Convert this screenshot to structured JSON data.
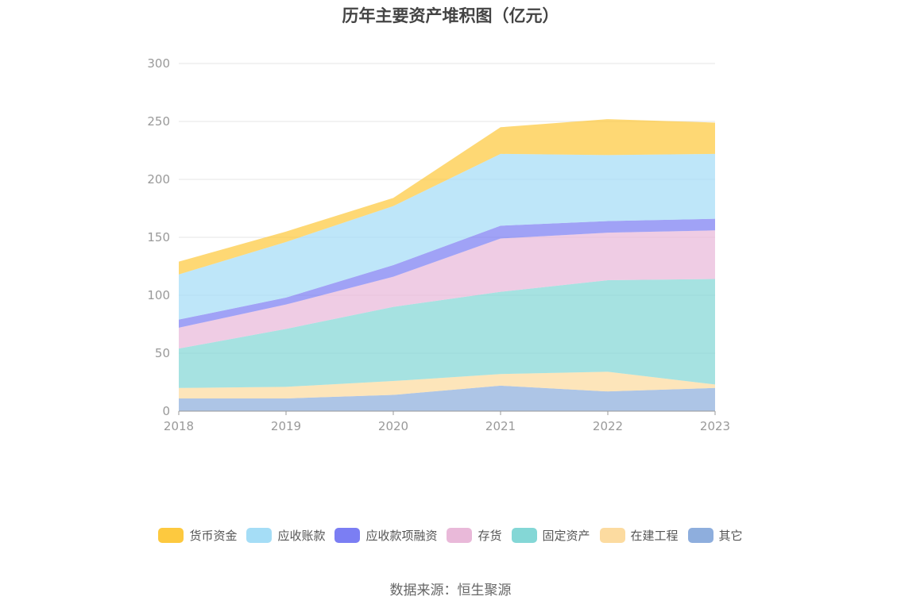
{
  "chart_data": {
    "type": "area",
    "stacked": true,
    "title": "历年主要资产堆积图（亿元）",
    "x": [
      "2018",
      "2019",
      "2020",
      "2021",
      "2022",
      "2023"
    ],
    "ylim": [
      0,
      300
    ],
    "yticks": [
      0,
      50,
      100,
      150,
      200,
      250,
      300
    ],
    "grid": true,
    "legend_position": "bottom",
    "series": [
      {
        "name": "其它",
        "color": "#8eaedd",
        "values": [
          11,
          11,
          14,
          22,
          17,
          20
        ]
      },
      {
        "name": "在建工程",
        "color": "#fcdba0",
        "values": [
          9,
          10,
          12,
          10,
          17,
          3
        ]
      },
      {
        "name": "固定资产",
        "color": "#84d7d6",
        "values": [
          34,
          50,
          64,
          71,
          79,
          91
        ]
      },
      {
        "name": "存货",
        "color": "#e9b9d9",
        "values": [
          18,
          21,
          26,
          46,
          41,
          42
        ]
      },
      {
        "name": "应收款项融资",
        "color": "#7b7ef3",
        "values": [
          7,
          6,
          10,
          11,
          10,
          10
        ]
      },
      {
        "name": "应收账款",
        "color": "#a5ddf6",
        "values": [
          39,
          48,
          51,
          62,
          57,
          56
        ]
      },
      {
        "name": "货币资金",
        "color": "#fdc93f",
        "values": [
          11,
          9,
          7,
          23,
          31,
          27
        ]
      }
    ],
    "legend_order": [
      "货币资金",
      "应收账款",
      "应收款项融资",
      "存货",
      "固定资产",
      "在建工程",
      "其它"
    ]
  },
  "source": "数据来源：恒生聚源"
}
